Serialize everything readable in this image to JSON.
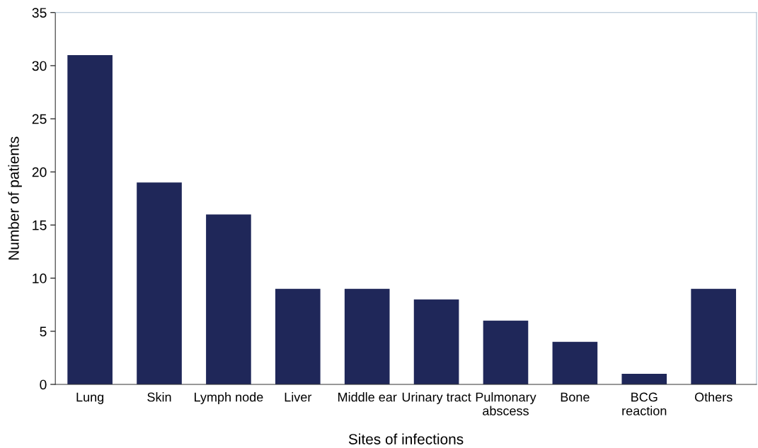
{
  "chart_data": {
    "type": "bar",
    "xlabel": "Sites of infections",
    "ylabel": "Number of patients",
    "categories": [
      "Lung",
      "Skin",
      "Lymph node",
      "Liver",
      "Middle ear",
      "Urinary tract",
      "Pulmonary\nabscess",
      "Bone",
      "BCG\nreaction",
      "Others"
    ],
    "values": [
      31,
      19,
      16,
      9,
      9,
      8,
      6,
      4,
      1,
      9
    ],
    "color": "#1f2759",
    "ylim": [
      0,
      35
    ],
    "yticks": [
      0,
      5,
      10,
      15,
      20,
      25,
      30,
      35
    ],
    "grid": false,
    "legend": false
  }
}
